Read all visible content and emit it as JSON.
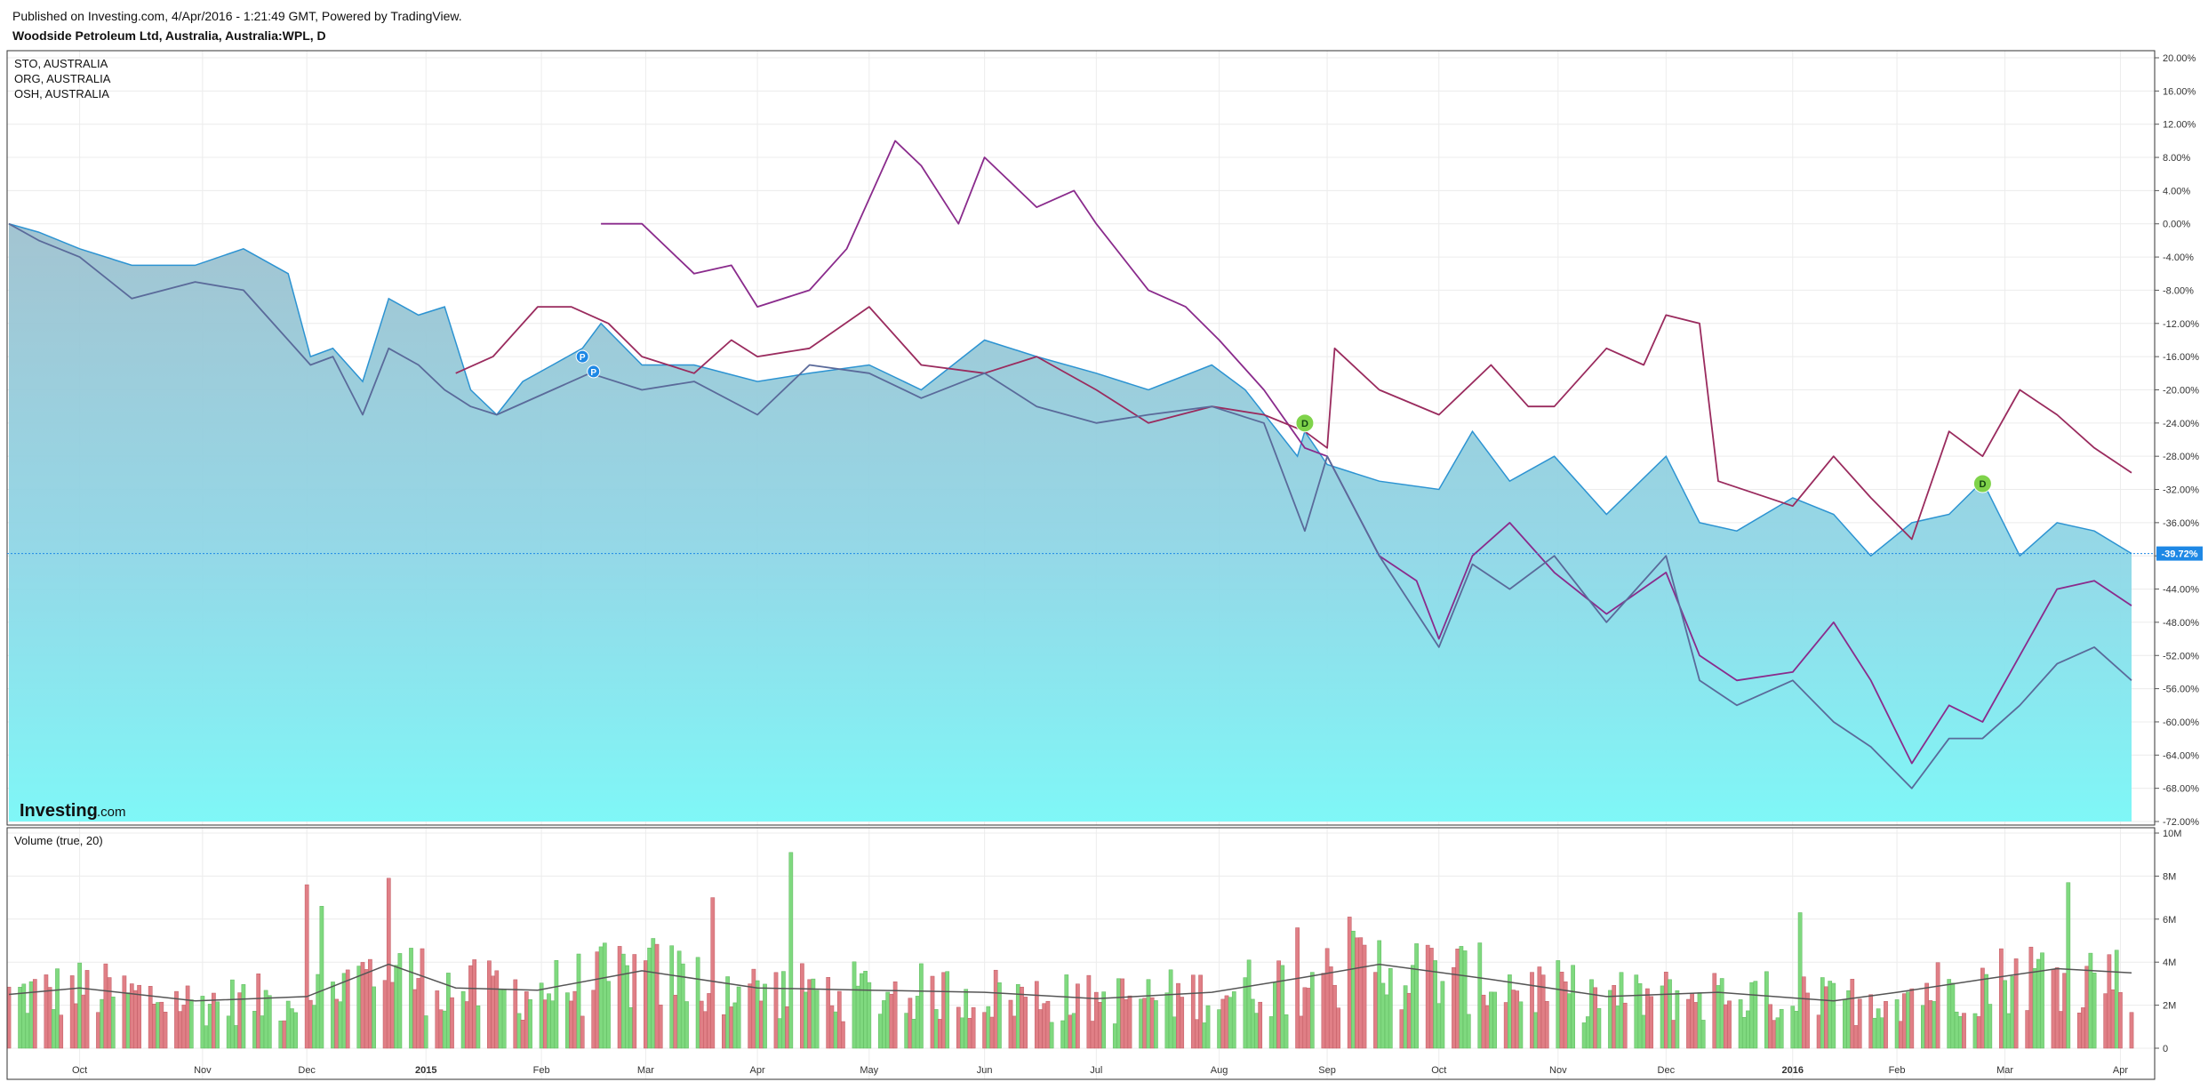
{
  "header": {
    "published": "Published on Investing.com, 4/Apr/2016 - 1:21:49 GMT, Powered by TradingView.",
    "title": "Woodside Petroleum Ltd, Australia, Australia:WPL, D"
  },
  "legend": [
    "STO, AUSTRALIA",
    "ORG, AUSTRALIA",
    "OSH, AUSTRALIA"
  ],
  "watermark": {
    "brand": "Investing",
    "suffix": ".com"
  },
  "volume_label": "Volume (true, 20)",
  "current_label": "-39.72%",
  "markers": [
    {
      "text": "P",
      "date": "2015-02-13",
      "value": -16.0
    },
    {
      "text": "P",
      "date": "2015-02-16",
      "value": -17.8
    },
    {
      "text": "D",
      "date": "2015-08-26",
      "value": -24.0
    },
    {
      "text": "D",
      "date": "2016-02-24",
      "value": -31.3
    }
  ],
  "colors": {
    "main_line": "#2c93d2",
    "sto": "#8a2b8c",
    "org": "#9a2b5e",
    "osh": "#5a6a9a",
    "vol_up": "#7fd97f",
    "vol_down": "#e07f86",
    "vol_ma": "#555555",
    "current_badge": "#1e88e5"
  },
  "chart_data": {
    "type": "line",
    "y_unit": "%",
    "ylim": [
      -72,
      20
    ],
    "yticks": [
      "20.00%",
      "16.00%",
      "12.00%",
      "8.00%",
      "4.00%",
      "0.00%",
      "-4.00%",
      "-8.00%",
      "-12.00%",
      "-16.00%",
      "-20.00%",
      "-24.00%",
      "-28.00%",
      "-32.00%",
      "-36.00%",
      "-40.00%",
      "-44.00%",
      "-48.00%",
      "-52.00%",
      "-56.00%",
      "-60.00%",
      "-64.00%",
      "-68.00%",
      "-72.00%"
    ],
    "xlim": [
      "2014-09-12",
      "2016-04-04"
    ],
    "xticks": [
      {
        "label": "Oct",
        "date": "2014-10-01",
        "bold": false
      },
      {
        "label": "Nov",
        "date": "2014-11-03",
        "bold": false
      },
      {
        "label": "Dec",
        "date": "2014-12-01",
        "bold": false
      },
      {
        "label": "2015",
        "date": "2015-01-02",
        "bold": true
      },
      {
        "label": "Feb",
        "date": "2015-02-02",
        "bold": false
      },
      {
        "label": "Mar",
        "date": "2015-03-02",
        "bold": false
      },
      {
        "label": "Apr",
        "date": "2015-04-01",
        "bold": false
      },
      {
        "label": "May",
        "date": "2015-05-01",
        "bold": false
      },
      {
        "label": "Jun",
        "date": "2015-06-01",
        "bold": false
      },
      {
        "label": "Jul",
        "date": "2015-07-01",
        "bold": false
      },
      {
        "label": "Aug",
        "date": "2015-08-03",
        "bold": false
      },
      {
        "label": "Sep",
        "date": "2015-09-01",
        "bold": false
      },
      {
        "label": "Oct",
        "date": "2015-10-01",
        "bold": false
      },
      {
        "label": "Nov",
        "date": "2015-11-02",
        "bold": false
      },
      {
        "label": "Dec",
        "date": "2015-12-01",
        "bold": false
      },
      {
        "label": "2016",
        "date": "2016-01-04",
        "bold": true
      },
      {
        "label": "Feb",
        "date": "2016-02-01",
        "bold": false
      },
      {
        "label": "Mar",
        "date": "2016-03-01",
        "bold": false
      },
      {
        "label": "Apr",
        "date": "2016-04-01",
        "bold": false
      }
    ],
    "series": [
      {
        "name": "Woodside Petroleum Ltd, Australia, Australia:WPL, D",
        "style": "area",
        "points": [
          [
            "2014-09-12",
            0
          ],
          [
            "2014-09-20",
            -1
          ],
          [
            "2014-10-01",
            -3
          ],
          [
            "2014-10-15",
            -5
          ],
          [
            "2014-11-01",
            -5
          ],
          [
            "2014-11-14",
            -3
          ],
          [
            "2014-11-26",
            -6
          ],
          [
            "2014-12-02",
            -16
          ],
          [
            "2014-12-08",
            -15
          ],
          [
            "2014-12-16",
            -19
          ],
          [
            "2014-12-23",
            -9
          ],
          [
            "2014-12-31",
            -11
          ],
          [
            "2015-01-07",
            -10
          ],
          [
            "2015-01-14",
            -20
          ],
          [
            "2015-01-21",
            -23
          ],
          [
            "2015-01-28",
            -19
          ],
          [
            "2015-02-05",
            -17
          ],
          [
            "2015-02-13",
            -15
          ],
          [
            "2015-02-18",
            -12
          ],
          [
            "2015-03-01",
            -17
          ],
          [
            "2015-03-15",
            -17
          ],
          [
            "2015-04-01",
            -19
          ],
          [
            "2015-04-15",
            -18
          ],
          [
            "2015-05-01",
            -17
          ],
          [
            "2015-05-15",
            -20
          ],
          [
            "2015-06-01",
            -14
          ],
          [
            "2015-06-15",
            -16
          ],
          [
            "2015-07-01",
            -18
          ],
          [
            "2015-07-15",
            -20
          ],
          [
            "2015-08-01",
            -17
          ],
          [
            "2015-08-10",
            -20
          ],
          [
            "2015-08-24",
            -28
          ],
          [
            "2015-08-26",
            -25
          ],
          [
            "2015-09-01",
            -29
          ],
          [
            "2015-09-15",
            -31
          ],
          [
            "2015-10-01",
            -32
          ],
          [
            "2015-10-10",
            -25
          ],
          [
            "2015-10-20",
            -31
          ],
          [
            "2015-11-01",
            -28
          ],
          [
            "2015-11-15",
            -35
          ],
          [
            "2015-12-01",
            -28
          ],
          [
            "2015-12-10",
            -36
          ],
          [
            "2015-12-20",
            -37
          ],
          [
            "2016-01-04",
            -33
          ],
          [
            "2016-01-15",
            -35
          ],
          [
            "2016-01-25",
            -40
          ],
          [
            "2016-02-05",
            -36
          ],
          [
            "2016-02-15",
            -35
          ],
          [
            "2016-02-24",
            -31
          ],
          [
            "2016-03-05",
            -40
          ],
          [
            "2016-03-15",
            -36
          ],
          [
            "2016-03-25",
            -37
          ],
          [
            "2016-04-04",
            -39.72
          ]
        ]
      },
      {
        "name": "STO, AUSTRALIA",
        "style": "line",
        "points": [
          [
            "2015-02-18",
            0
          ],
          [
            "2015-03-01",
            0
          ],
          [
            "2015-03-15",
            -6
          ],
          [
            "2015-03-25",
            -5
          ],
          [
            "2015-04-01",
            -10
          ],
          [
            "2015-04-15",
            -8
          ],
          [
            "2015-04-25",
            -3
          ],
          [
            "2015-05-08",
            10
          ],
          [
            "2015-05-15",
            7
          ],
          [
            "2015-05-25",
            0
          ],
          [
            "2015-06-01",
            8
          ],
          [
            "2015-06-15",
            2
          ],
          [
            "2015-06-25",
            4
          ],
          [
            "2015-07-01",
            0
          ],
          [
            "2015-07-15",
            -8
          ],
          [
            "2015-07-25",
            -10
          ],
          [
            "2015-08-03",
            -14
          ],
          [
            "2015-08-15",
            -20
          ],
          [
            "2015-08-26",
            -27
          ],
          [
            "2015-09-01",
            -28
          ],
          [
            "2015-09-15",
            -40
          ],
          [
            "2015-09-25",
            -43
          ],
          [
            "2015-10-01",
            -50
          ],
          [
            "2015-10-10",
            -40
          ],
          [
            "2015-10-20",
            -36
          ],
          [
            "2015-11-01",
            -42
          ],
          [
            "2015-11-15",
            -47
          ],
          [
            "2015-12-01",
            -42
          ],
          [
            "2015-12-10",
            -52
          ],
          [
            "2015-12-20",
            -55
          ],
          [
            "2016-01-04",
            -54
          ],
          [
            "2016-01-15",
            -48
          ],
          [
            "2016-01-25",
            -55
          ],
          [
            "2016-02-05",
            -65
          ],
          [
            "2016-02-15",
            -58
          ],
          [
            "2016-02-24",
            -60
          ],
          [
            "2016-03-05",
            -52
          ],
          [
            "2016-03-15",
            -44
          ],
          [
            "2016-03-25",
            -43
          ],
          [
            "2016-04-04",
            -46
          ]
        ]
      },
      {
        "name": "ORG, AUSTRALIA",
        "style": "line",
        "points": [
          [
            "2015-01-10",
            -18
          ],
          [
            "2015-01-20",
            -16
          ],
          [
            "2015-02-01",
            -10
          ],
          [
            "2015-02-10",
            -10
          ],
          [
            "2015-02-20",
            -12
          ],
          [
            "2015-03-01",
            -16
          ],
          [
            "2015-03-15",
            -18
          ],
          [
            "2015-03-25",
            -14
          ],
          [
            "2015-04-01",
            -16
          ],
          [
            "2015-04-15",
            -15
          ],
          [
            "2015-05-01",
            -10
          ],
          [
            "2015-05-15",
            -17
          ],
          [
            "2015-06-01",
            -18
          ],
          [
            "2015-06-15",
            -16
          ],
          [
            "2015-07-01",
            -20
          ],
          [
            "2015-07-15",
            -24
          ],
          [
            "2015-08-01",
            -22
          ],
          [
            "2015-08-15",
            -23
          ],
          [
            "2015-08-26",
            -25
          ],
          [
            "2015-09-01",
            -27
          ],
          [
            "2015-09-03",
            -15
          ],
          [
            "2015-09-15",
            -20
          ],
          [
            "2015-10-01",
            -23
          ],
          [
            "2015-10-15",
            -17
          ],
          [
            "2015-10-25",
            -22
          ],
          [
            "2015-11-01",
            -22
          ],
          [
            "2015-11-15",
            -15
          ],
          [
            "2015-11-25",
            -17
          ],
          [
            "2015-12-01",
            -11
          ],
          [
            "2015-12-10",
            -12
          ],
          [
            "2015-12-15",
            -31
          ],
          [
            "2016-01-04",
            -34
          ],
          [
            "2016-01-15",
            -28
          ],
          [
            "2016-01-25",
            -33
          ],
          [
            "2016-02-05",
            -38
          ],
          [
            "2016-02-15",
            -25
          ],
          [
            "2016-02-24",
            -28
          ],
          [
            "2016-03-05",
            -20
          ],
          [
            "2016-03-15",
            -23
          ],
          [
            "2016-03-25",
            -27
          ],
          [
            "2016-04-04",
            -30
          ]
        ]
      },
      {
        "name": "OSH, AUSTRALIA",
        "style": "line",
        "points": [
          [
            "2014-09-12",
            0
          ],
          [
            "2014-09-20",
            -2
          ],
          [
            "2014-10-01",
            -4
          ],
          [
            "2014-10-15",
            -9
          ],
          [
            "2014-11-01",
            -7
          ],
          [
            "2014-11-14",
            -8
          ],
          [
            "2014-11-24",
            -13
          ],
          [
            "2014-12-02",
            -17
          ],
          [
            "2014-12-08",
            -16
          ],
          [
            "2014-12-16",
            -23
          ],
          [
            "2014-12-23",
            -15
          ],
          [
            "2014-12-31",
            -17
          ],
          [
            "2015-01-07",
            -20
          ],
          [
            "2015-01-14",
            -22
          ],
          [
            "2015-01-21",
            -23
          ],
          [
            "2015-02-05",
            -20
          ],
          [
            "2015-02-15",
            -18
          ],
          [
            "2015-03-01",
            -20
          ],
          [
            "2015-03-15",
            -19
          ],
          [
            "2015-04-01",
            -23
          ],
          [
            "2015-04-15",
            -17
          ],
          [
            "2015-05-01",
            -18
          ],
          [
            "2015-05-15",
            -21
          ],
          [
            "2015-06-01",
            -18
          ],
          [
            "2015-06-15",
            -22
          ],
          [
            "2015-07-01",
            -24
          ],
          [
            "2015-07-15",
            -23
          ],
          [
            "2015-08-01",
            -22
          ],
          [
            "2015-08-15",
            -24
          ],
          [
            "2015-08-26",
            -37
          ],
          [
            "2015-09-01",
            -28
          ],
          [
            "2015-09-15",
            -40
          ],
          [
            "2015-10-01",
            -51
          ],
          [
            "2015-10-10",
            -41
          ],
          [
            "2015-10-20",
            -44
          ],
          [
            "2015-11-01",
            -40
          ],
          [
            "2015-11-15",
            -48
          ],
          [
            "2015-12-01",
            -40
          ],
          [
            "2015-12-10",
            -55
          ],
          [
            "2015-12-20",
            -58
          ],
          [
            "2016-01-04",
            -55
          ],
          [
            "2016-01-15",
            -60
          ],
          [
            "2016-01-25",
            -63
          ],
          [
            "2016-02-05",
            -68
          ],
          [
            "2016-02-15",
            -62
          ],
          [
            "2016-02-24",
            -62
          ],
          [
            "2016-03-05",
            -58
          ],
          [
            "2016-03-15",
            -53
          ],
          [
            "2016-03-25",
            -51
          ],
          [
            "2016-04-04",
            -55
          ]
        ]
      }
    ],
    "volume": {
      "name": "Volume (true, 20)",
      "ylim": [
        0,
        10
      ],
      "y_unit": "M",
      "yticks": [
        "10M",
        "8M",
        "6M",
        "4M",
        "2M",
        "0"
      ],
      "ma_points": [
        [
          "2014-09-12",
          2.5
        ],
        [
          "2014-10-01",
          2.8
        ],
        [
          "2014-11-01",
          2.2
        ],
        [
          "2014-12-01",
          2.4
        ],
        [
          "2014-12-23",
          3.9
        ],
        [
          "2015-01-10",
          2.8
        ],
        [
          "2015-02-01",
          2.7
        ],
        [
          "2015-03-01",
          3.6
        ],
        [
          "2015-04-01",
          2.8
        ],
        [
          "2015-05-01",
          2.7
        ],
        [
          "2015-06-01",
          2.6
        ],
        [
          "2015-07-01",
          2.3
        ],
        [
          "2015-08-01",
          2.6
        ],
        [
          "2015-08-26",
          3.3
        ],
        [
          "2015-09-15",
          3.9
        ],
        [
          "2015-10-15",
          3.2
        ],
        [
          "2015-11-15",
          2.4
        ],
        [
          "2015-12-15",
          2.6
        ],
        [
          "2016-01-15",
          2.2
        ],
        [
          "2016-02-01",
          2.6
        ],
        [
          "2016-02-24",
          3.2
        ],
        [
          "2016-03-15",
          3.7
        ],
        [
          "2016-04-04",
          3.5
        ]
      ],
      "highlights": [
        [
          "2014-12-01",
          7.6
        ],
        [
          "2014-12-05",
          6.6
        ],
        [
          "2014-12-23",
          7.9
        ],
        [
          "2015-03-20",
          7.0
        ],
        [
          "2015-04-10",
          9.1
        ],
        [
          "2015-08-24",
          5.6
        ],
        [
          "2015-09-07",
          6.1
        ],
        [
          "2016-01-06",
          6.3
        ],
        [
          "2016-03-18",
          7.7
        ]
      ]
    }
  }
}
